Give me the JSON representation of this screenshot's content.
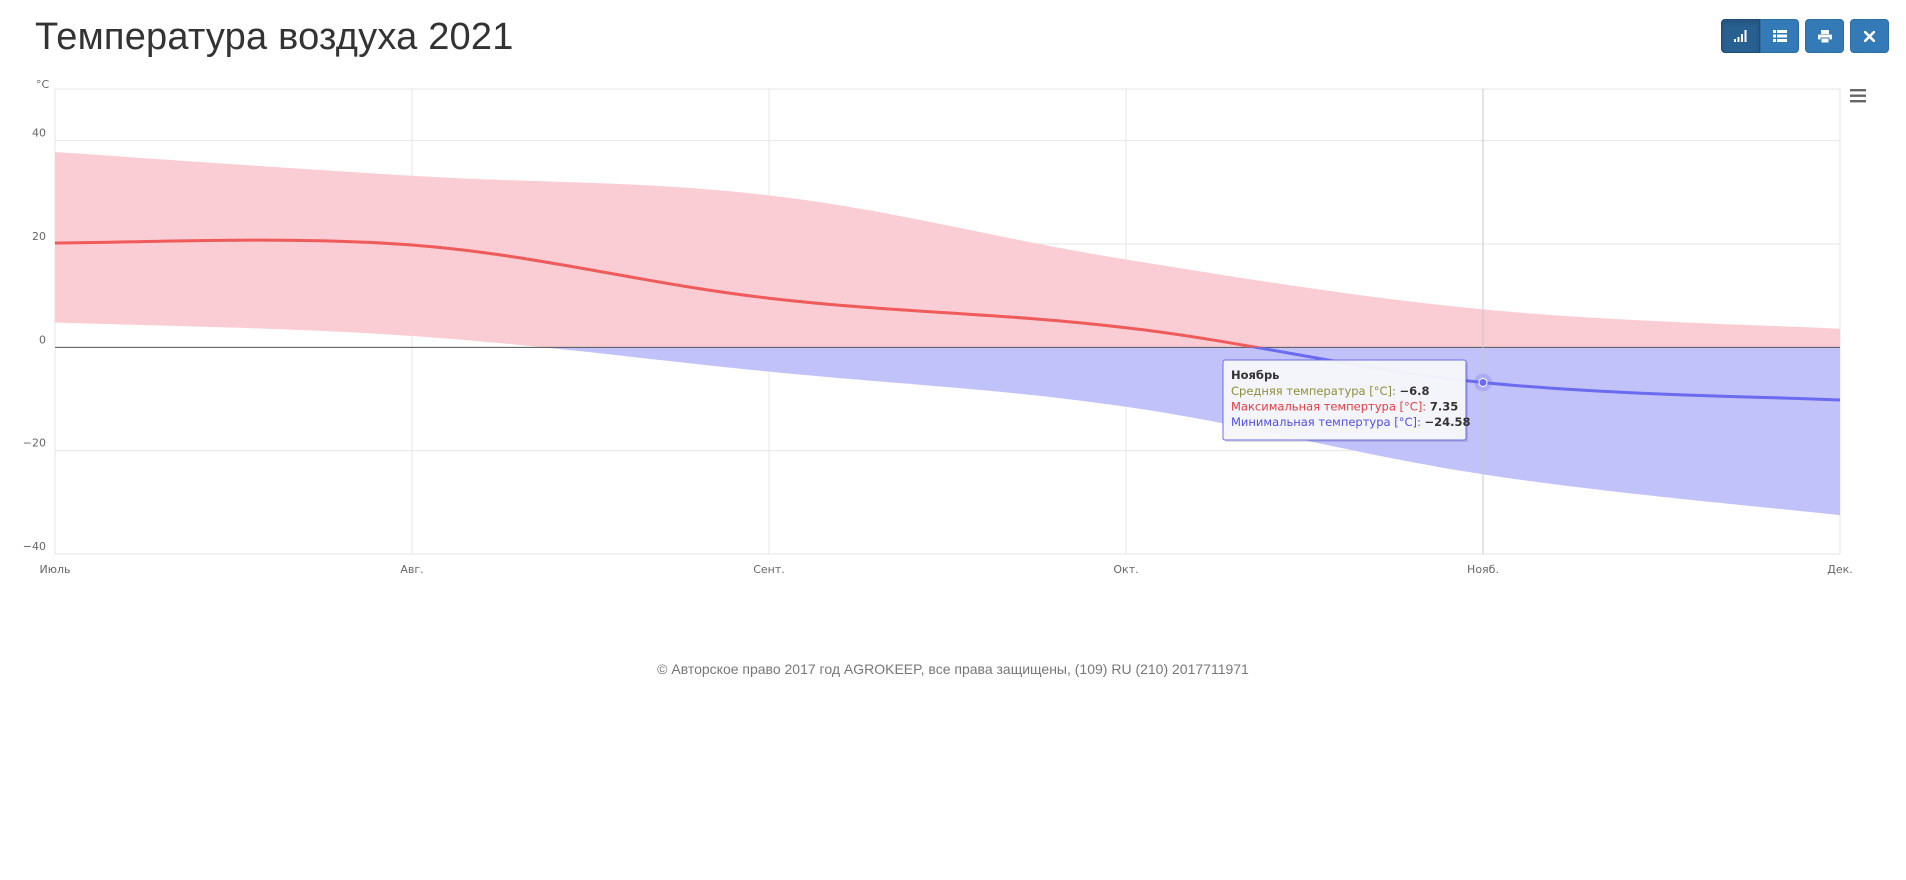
{
  "header": {
    "title": "Температура воздуха 2021"
  },
  "toolbar": {
    "buttons": [
      {
        "name": "chart-view-button",
        "icon": "signal-icon",
        "active": true
      },
      {
        "name": "table-view-button",
        "icon": "list-icon",
        "active": false
      },
      {
        "name": "print-button",
        "icon": "print-icon",
        "active": false
      },
      {
        "name": "close-button",
        "icon": "close-icon",
        "active": false
      }
    ]
  },
  "chart_menu": {
    "icon": "hamburger-menu-icon"
  },
  "chart_data": {
    "type": "area",
    "title": "",
    "unit_label": "°C",
    "categories": [
      "Июль",
      "Авг.",
      "Сент.",
      "Окт.",
      "Нояб.",
      "Дек."
    ],
    "ylim": [
      -40,
      50
    ],
    "yticks": [
      40,
      20,
      0,
      -20,
      -40
    ],
    "ytick_labels": [
      "40",
      "20",
      "0",
      "−20",
      "−40"
    ],
    "grid": true,
    "zero_line": true,
    "series": [
      {
        "name": "Средняя температура",
        "values": [
          20.2,
          19.8,
          9.5,
          3.8,
          -6.8,
          -10.2
        ],
        "color": "#f05454"
      },
      {
        "name": "Максимальная темпертура",
        "values": [
          37.8,
          33.2,
          29.4,
          17.0,
          7.35,
          3.6
        ],
        "color": "#f7b8c0"
      },
      {
        "name": "Минимальная темпертура",
        "values": [
          4.8,
          2.2,
          -4.7,
          -11.5,
          -24.58,
          -32.5
        ],
        "color": "#9b9bf5"
      }
    ],
    "colors": {
      "max_area": "#f9cdd3",
      "min_area": "#c2c2fa",
      "avg_line_positive": "#ef5a5a",
      "avg_line_negative": "#6b6bf0",
      "grid": "#e6e6e6",
      "zero_line": "#555555"
    },
    "tooltip": {
      "category": "Ноябрь",
      "rows": [
        {
          "label": "Средняя температура [°C]:",
          "value": "−6.8",
          "color": "#8e8e3a"
        },
        {
          "label": "Максимальная темпертура [°C]:",
          "value": "7.35",
          "color": "#e0403f"
        },
        {
          "label": "Минимальная темпертура [°C]:",
          "value": "−24.58",
          "color": "#5050e0"
        }
      ]
    }
  },
  "footer": {
    "text": "© Авторское право 2017 год AGROKEEP, все права защищены, (109) RU (210) 2017711971"
  }
}
